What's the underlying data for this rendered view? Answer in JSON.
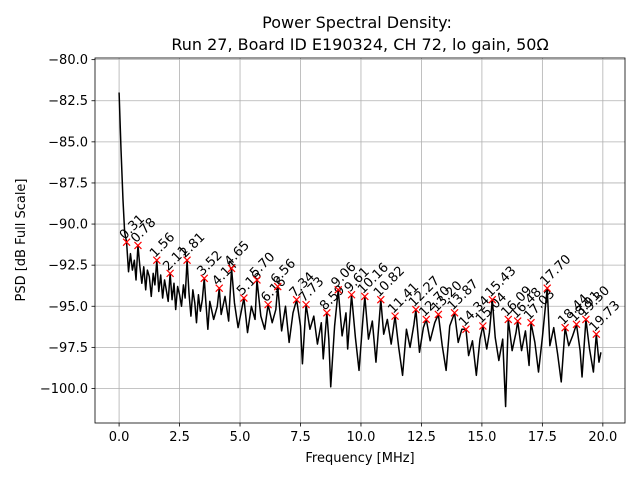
{
  "chart_data": {
    "type": "line",
    "title": [
      "Power Spectral Density:",
      "Run 27, Board ID E190324, CH 72, lo gain, 50Ω"
    ],
    "xlabel": "Frequency [MHz]",
    "ylabel": "PSD [dB Full Scale]",
    "xlim": [
      -0.996,
      20.916
    ],
    "ylim": [
      -102.1,
      -79.9
    ],
    "xticks": [
      {
        "value": 0,
        "label": "0.0"
      },
      2.5,
      {
        "value": 5,
        "label": "5.0"
      },
      7.5,
      {
        "value": 10,
        "label": "10.0"
      },
      12.5,
      {
        "value": 15,
        "label": "15.0"
      },
      17.5,
      {
        "value": 20,
        "label": "20.0"
      }
    ],
    "yticks": [
      {
        "value": -80,
        "label": "−80.0"
      },
      {
        "value": -82.5,
        "label": "−82.5"
      },
      {
        "value": -85,
        "label": "−85.0"
      },
      {
        "value": -87.5,
        "label": "−87.5"
      },
      {
        "value": -90,
        "label": "−90.0"
      },
      {
        "value": -92.5,
        "label": "−92.5"
      },
      {
        "value": -95,
        "label": "−95.0"
      },
      {
        "value": -97.5,
        "label": "−97.5"
      },
      {
        "value": -100,
        "label": "−100.0"
      }
    ],
    "grid": true,
    "series": [
      {
        "color": "#000000",
        "x": [
          0,
          0.08,
          0.16,
          0.23,
          0.31,
          0.39,
          0.47,
          0.55,
          0.63,
          0.7,
          0.78,
          0.86,
          0.94,
          1.02,
          1.1,
          1.17,
          1.25,
          1.33,
          1.41,
          1.48,
          1.56,
          1.64,
          1.72,
          1.8,
          1.88,
          1.95,
          2.03,
          2.11,
          2.19,
          2.27,
          2.34,
          2.42,
          2.5,
          2.58,
          2.66,
          2.73,
          2.81,
          2.89,
          2.97,
          3.05,
          3.13,
          3.2,
          3.28,
          3.36,
          3.44,
          3.52,
          3.59,
          3.67,
          3.75,
          3.91,
          4.06,
          4.14,
          4.22,
          4.38,
          4.53,
          4.65,
          4.77,
          4.92,
          5.08,
          5.16,
          5.31,
          5.47,
          5.62,
          5.7,
          5.86,
          6.02,
          6.16,
          6.33,
          6.48,
          6.56,
          6.72,
          6.88,
          7.03,
          7.19,
          7.34,
          7.5,
          7.58,
          7.73,
          7.89,
          8.05,
          8.2,
          8.36,
          8.44,
          8.59,
          8.67,
          8.75,
          8.91,
          9.06,
          9.22,
          9.38,
          9.45,
          9.61,
          9.77,
          9.92,
          10.08,
          10.16,
          10.31,
          10.47,
          10.62,
          10.82,
          10.94,
          11.09,
          11.25,
          11.41,
          11.56,
          11.72,
          11.88,
          12.03,
          12.19,
          12.27,
          12.42,
          12.58,
          12.7,
          12.86,
          13.05,
          13.2,
          13.36,
          13.52,
          13.67,
          13.87,
          14.02,
          14.17,
          14.34,
          14.45,
          14.61,
          14.77,
          14.92,
          15.04,
          15.2,
          15.31,
          15.43,
          15.55,
          15.7,
          15.86,
          15.98,
          16.09,
          16.25,
          16.41,
          16.48,
          16.64,
          16.8,
          16.95,
          17.03,
          17.19,
          17.34,
          17.5,
          17.7,
          17.81,
          17.97,
          18.13,
          18.28,
          18.44,
          18.59,
          18.75,
          18.91,
          19.06,
          19.14,
          19.3,
          19.45,
          19.61,
          19.73,
          19.84,
          19.92
        ],
        "values": [
          -82.0,
          -85.5,
          -88.5,
          -90.5,
          -91.1,
          -92.9,
          -91.8,
          -92.8,
          -92.2,
          -93.4,
          -91.3,
          -92.6,
          -93.6,
          -92.6,
          -94.0,
          -92.8,
          -93.2,
          -94.4,
          -93.0,
          -93.7,
          -92.2,
          -94.1,
          -93.1,
          -94.5,
          -93.4,
          -94.0,
          -94.7,
          -93.0,
          -94.6,
          -93.6,
          -95.2,
          -93.8,
          -94.3,
          -95.0,
          -93.7,
          -94.5,
          -92.2,
          -94.2,
          -95.6,
          -94.0,
          -94.8,
          -96.0,
          -94.3,
          -95.3,
          -94.6,
          -93.3,
          -94.8,
          -96.4,
          -94.7,
          -95.8,
          -95.0,
          -93.9,
          -95.5,
          -94.4,
          -95.9,
          -92.7,
          -94.8,
          -96.3,
          -95.1,
          -94.5,
          -96.6,
          -95.0,
          -95.8,
          -93.4,
          -95.6,
          -96.4,
          -94.9,
          -96.0,
          -95.2,
          -93.8,
          -96.5,
          -95.0,
          -97.2,
          -95.4,
          -94.6,
          -96.2,
          -98.5,
          -94.9,
          -96.4,
          -95.6,
          -97.3,
          -96.0,
          -98.2,
          -95.4,
          -97.0,
          -99.9,
          -96.2,
          -94.0,
          -96.8,
          -95.4,
          -97.6,
          -94.3,
          -96.9,
          -98.9,
          -95.8,
          -94.4,
          -97.0,
          -95.9,
          -98.4,
          -94.6,
          -96.7,
          -95.8,
          -97.3,
          -95.6,
          -97.5,
          -99.2,
          -96.4,
          -97.5,
          -96.1,
          -95.2,
          -97.8,
          -96.3,
          -95.8,
          -97.1,
          -96.0,
          -95.5,
          -97.4,
          -98.9,
          -96.2,
          -95.4,
          -97.2,
          -96.4,
          -96.4,
          -98.0,
          -97.1,
          -99.2,
          -97.0,
          -96.2,
          -97.6,
          -96.6,
          -94.6,
          -96.9,
          -98.3,
          -97.0,
          -101.1,
          -95.8,
          -97.7,
          -96.6,
          -95.9,
          -97.7,
          -96.5,
          -98.6,
          -96.0,
          -97.2,
          -99.0,
          -96.9,
          -93.9,
          -97.4,
          -96.3,
          -97.9,
          -99.6,
          -96.3,
          -97.4,
          -96.8,
          -96.1,
          -97.7,
          -99.3,
          -95.8,
          -97.6,
          -99.0,
          -96.7,
          -98.4,
          -97.8
        ]
      }
    ],
    "peaks": {
      "color": "#ff0000",
      "x": [
        0.31,
        0.78,
        1.56,
        2.11,
        2.81,
        3.52,
        4.14,
        4.65,
        5.16,
        5.7,
        6.16,
        6.56,
        7.34,
        7.73,
        8.59,
        9.06,
        9.61,
        10.16,
        10.82,
        11.41,
        12.27,
        12.7,
        13.2,
        13.87,
        14.34,
        15.04,
        15.43,
        16.09,
        16.48,
        17.03,
        17.7,
        18.44,
        18.91,
        19.3,
        19.73
      ],
      "values": [
        -91.1,
        -91.3,
        -92.2,
        -93.0,
        -92.2,
        -93.3,
        -93.9,
        -92.7,
        -94.5,
        -93.4,
        -94.9,
        -93.8,
        -94.6,
        -94.9,
        -95.4,
        -94.0,
        -94.3,
        -94.4,
        -94.6,
        -95.6,
        -95.2,
        -95.8,
        -95.5,
        -95.4,
        -96.4,
        -96.2,
        -94.6,
        -95.8,
        -95.9,
        -96.0,
        -93.9,
        -96.3,
        -96.1,
        -95.8,
        -96.7
      ],
      "labels": [
        "0.31",
        "0.78",
        "1.56",
        "2.11",
        "2.81",
        "3.52",
        "4.14",
        "4.65",
        "5.16",
        "5.70",
        "6.16",
        "6.56",
        "7.34",
        "7.73",
        "8.59",
        "9.06",
        "9.61",
        "10.16",
        "10.82",
        "11.41",
        "12.27",
        "12.70",
        "13.20",
        "13.87",
        "14.34",
        "15.04",
        "15.43",
        "16.09",
        "16.48",
        "17.03",
        "17.70",
        "18.44",
        "18.91",
        "19.30",
        "19.73"
      ]
    }
  }
}
